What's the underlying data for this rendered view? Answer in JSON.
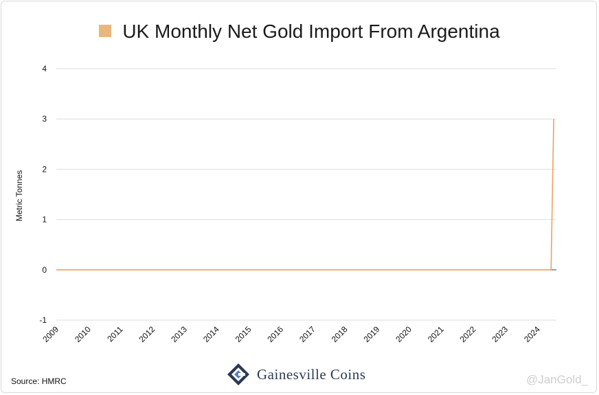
{
  "chart_data": {
    "type": "line",
    "title": "UK Monthly Net Gold Import From Argentina",
    "ylabel": "Metric Tonnes",
    "xlabel": "",
    "ylim": [
      -1,
      4
    ],
    "yticks": [
      -1,
      0,
      1,
      2,
      3,
      4
    ],
    "x_tick_labels": [
      "2009",
      "2010",
      "2011",
      "2012",
      "2013",
      "2014",
      "2015",
      "2016",
      "2017",
      "2018",
      "2019",
      "2020",
      "2021",
      "2022",
      "2023",
      "2024"
    ],
    "grid": true,
    "legend": "top-center",
    "series": [
      {
        "name": "UK Monthly Net Gold Import From Argentina",
        "color": "#e8b77e",
        "line_color": "#f0a060",
        "points": [
          {
            "x": "2009-01",
            "y": 0
          },
          {
            "x": "2024-06",
            "y": 0
          },
          {
            "x": "2024-07",
            "y": 3.0
          }
        ]
      }
    ]
  },
  "footer": {
    "source": "Source: HMRC",
    "logo_text": "Gainesville Coins",
    "watermark": "@JanGold_"
  }
}
